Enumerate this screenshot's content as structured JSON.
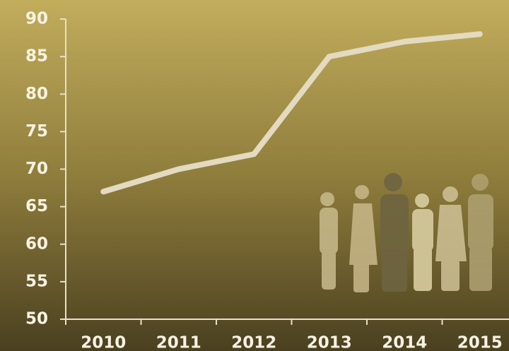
{
  "chart_data": {
    "type": "line",
    "categories": [
      "2010",
      "2011",
      "2012",
      "2013",
      "2014",
      "2015"
    ],
    "values": [
      67,
      70,
      72,
      85,
      87,
      88
    ],
    "color": "#e3dac0",
    "ylim": [
      50,
      90
    ],
    "yticks": [
      50,
      55,
      60,
      65,
      70,
      75,
      80,
      85,
      90
    ]
  }
}
